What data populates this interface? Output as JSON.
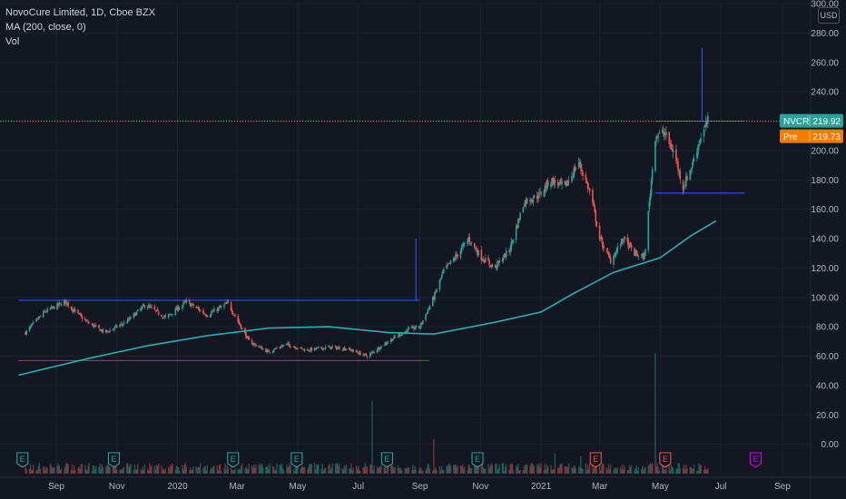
{
  "legend": {
    "title": "NovoCure Limited, 1D, Cboe BZX",
    "ma": "MA (200, close, 0)",
    "vol": "Vol"
  },
  "currency": "USD",
  "colors": {
    "background": "#131722",
    "grid": "#1f2330",
    "up": "#26a69a",
    "down": "#ef5350",
    "ma": "#22b0b5",
    "line": "#2962ff",
    "price_tag": "#26a69a",
    "pre_tag": "#f57c00"
  },
  "chart_data": {
    "type": "candlestick",
    "title": "NovoCure Limited, 1D, Cboe BZX",
    "ylim": [
      -20,
      300
    ],
    "y_ticks": [
      "0.00",
      "20.00",
      "40.00",
      "60.00",
      "80.00",
      "100.00",
      "120.00",
      "140.00",
      "160.00",
      "180.00",
      "200.00",
      "220.00",
      "240.00",
      "260.00",
      "280.00",
      "300.00"
    ],
    "x_ticks": [
      "Sep",
      "Nov",
      "2020",
      "Mar",
      "May",
      "Jul",
      "Sep",
      "Nov",
      "2021",
      "Mar",
      "May",
      "Jul",
      "Sep"
    ],
    "last_price": {
      "label": "NVCR",
      "value": "219.92",
      "y": 219.92
    },
    "pre_price": {
      "label": "Pre",
      "value": "219.73",
      "y": 219.73
    },
    "price_path": [
      [
        "2019-08-01",
        76
      ],
      [
        "2019-08-20",
        90
      ],
      [
        "2019-09-10",
        97
      ],
      [
        "2019-09-30",
        84
      ],
      [
        "2019-10-20",
        76
      ],
      [
        "2019-11-10",
        83
      ],
      [
        "2019-11-30",
        95
      ],
      [
        "2019-12-20",
        86
      ],
      [
        "2020-01-10",
        97
      ],
      [
        "2020-01-31",
        88
      ],
      [
        "2020-02-21",
        96
      ],
      [
        "2020-03-13",
        70
      ],
      [
        "2020-04-01",
        63
      ],
      [
        "2020-04-20",
        68
      ],
      [
        "2020-05-10",
        64
      ],
      [
        "2020-06-01",
        66
      ],
      [
        "2020-06-20",
        65
      ],
      [
        "2020-07-10",
        60
      ],
      [
        "2020-07-31",
        70
      ],
      [
        "2020-08-20",
        78
      ],
      [
        "2020-09-01",
        80
      ],
      [
        "2020-09-15",
        100
      ],
      [
        "2020-09-25",
        118
      ],
      [
        "2020-10-10",
        130
      ],
      [
        "2020-10-20",
        140
      ],
      [
        "2020-11-01",
        128
      ],
      [
        "2020-11-15",
        120
      ],
      [
        "2020-11-30",
        132
      ],
      [
        "2020-12-15",
        165
      ],
      [
        "2020-12-31",
        170
      ],
      [
        "2021-01-10",
        180
      ],
      [
        "2021-01-25",
        175
      ],
      [
        "2021-02-08",
        192
      ],
      [
        "2021-02-20",
        170
      ],
      [
        "2021-03-01",
        140
      ],
      [
        "2021-03-12",
        125
      ],
      [
        "2021-03-25",
        140
      ],
      [
        "2021-04-05",
        130
      ],
      [
        "2021-04-15",
        127
      ],
      [
        "2021-04-26",
        210
      ],
      [
        "2021-05-05",
        212
      ],
      [
        "2021-05-15",
        198
      ],
      [
        "2021-05-24",
        175
      ],
      [
        "2021-06-02",
        190
      ],
      [
        "2021-06-10",
        208
      ],
      [
        "2021-06-18",
        219.92
      ]
    ],
    "ma_path": [
      [
        "2019-07-25",
        47
      ],
      [
        "2019-10-01",
        58
      ],
      [
        "2019-12-01",
        67
      ],
      [
        "2020-02-01",
        74
      ],
      [
        "2020-04-01",
        79
      ],
      [
        "2020-06-01",
        80
      ],
      [
        "2020-08-01",
        76
      ],
      [
        "2020-09-15",
        75
      ],
      [
        "2020-11-15",
        83
      ],
      [
        "2021-01-01",
        90
      ],
      [
        "2021-02-01",
        102
      ],
      [
        "2021-03-15",
        117
      ],
      [
        "2021-05-01",
        127
      ],
      [
        "2021-06-01",
        142
      ],
      [
        "2021-06-26",
        152
      ]
    ],
    "volume_spikes": [
      [
        "2020-07-15",
        0.42
      ],
      [
        "2020-09-15",
        0.2
      ],
      [
        "2021-01-15",
        0.12
      ],
      [
        "2021-02-10",
        0.1
      ],
      [
        "2021-04-26",
        0.7
      ]
    ],
    "annotations": {
      "hlines": [
        [
          "2019-07-25",
          "2020-09-01",
          98
        ],
        [
          "2019-07-25",
          "2020-09-10",
          57
        ],
        [
          "2021-04-26",
          "2021-07-25",
          220
        ],
        [
          "2021-04-26",
          "2021-07-25",
          171
        ]
      ],
      "vlines": [
        [
          "2020-08-28",
          98,
          140
        ],
        [
          "2021-06-12",
          220,
          270
        ]
      ]
    },
    "events": [
      {
        "date": "2019-07-29",
        "label": "E",
        "color": "#26a69a"
      },
      {
        "date": "2019-10-29",
        "label": "E",
        "color": "#26a69a"
      },
      {
        "date": "2020-02-26",
        "label": "E",
        "color": "#26a69a"
      },
      {
        "date": "2020-04-30",
        "label": "E",
        "color": "#26a69a"
      },
      {
        "date": "2020-07-30",
        "label": "E",
        "color": "#26a69a"
      },
      {
        "date": "2020-10-29",
        "label": "E",
        "color": "#26a69a"
      },
      {
        "date": "2021-02-25",
        "label": "E",
        "color": "#ef5350"
      },
      {
        "date": "2021-05-06",
        "label": "E",
        "color": "#ef5350"
      },
      {
        "date": "2021-08-05",
        "label": "E",
        "color": "#d500f9"
      }
    ]
  }
}
